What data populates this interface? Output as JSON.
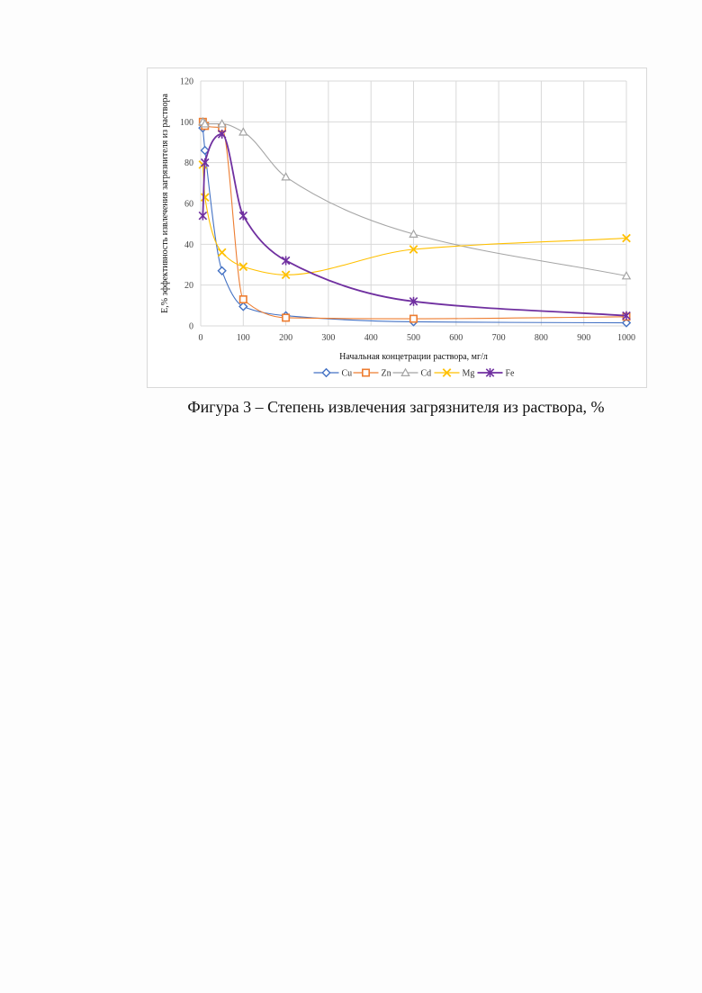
{
  "figure": {
    "caption": "Фигура 3 – Степень извлечения загрязнителя из раствора, %"
  },
  "chart_data": {
    "type": "line",
    "title": "",
    "xlabel": "Начальная концетрации раствора, мг/л",
    "ylabel": "E,% эффективность извлечения загрязнителя из раствора",
    "xlim": [
      0,
      1000
    ],
    "ylim": [
      0,
      120
    ],
    "xticks": [
      0,
      100,
      200,
      300,
      400,
      500,
      600,
      700,
      800,
      900,
      1000
    ],
    "yticks": [
      0,
      20,
      40,
      60,
      80,
      100,
      120
    ],
    "grid": true,
    "legend_position": "bottom",
    "smooth": true,
    "series": [
      {
        "name": "Cu",
        "color": "#4472c4",
        "marker": "diamond",
        "x": [
          5,
          10,
          50,
          100,
          200,
          500,
          1000
        ],
        "y": [
          97,
          86,
          27,
          9.5,
          5,
          2,
          1.5
        ]
      },
      {
        "name": "Zn",
        "color": "#ed7d31",
        "marker": "square",
        "x": [
          5,
          10,
          50,
          100,
          200,
          500,
          1000
        ],
        "y": [
          100,
          98,
          97,
          13,
          4,
          3.5,
          4.5
        ]
      },
      {
        "name": "Cd",
        "color": "#a5a5a5",
        "marker": "triangle",
        "x": [
          5,
          10,
          50,
          100,
          200,
          500,
          1000
        ],
        "y": [
          100,
          99,
          99,
          95,
          73,
          45,
          24.5
        ]
      },
      {
        "name": "Mg",
        "color": "#ffc000",
        "marker": "x",
        "x": [
          5,
          10,
          50,
          100,
          200,
          500,
          1000
        ],
        "y": [
          79,
          63,
          36,
          29,
          25,
          37.5,
          43
        ]
      },
      {
        "name": "Fe",
        "color": "#7030a0",
        "marker": "star",
        "x": [
          5,
          10,
          50,
          100,
          200,
          500,
          1000
        ],
        "y": [
          54,
          80,
          94,
          54,
          32,
          12,
          5
        ]
      }
    ]
  }
}
